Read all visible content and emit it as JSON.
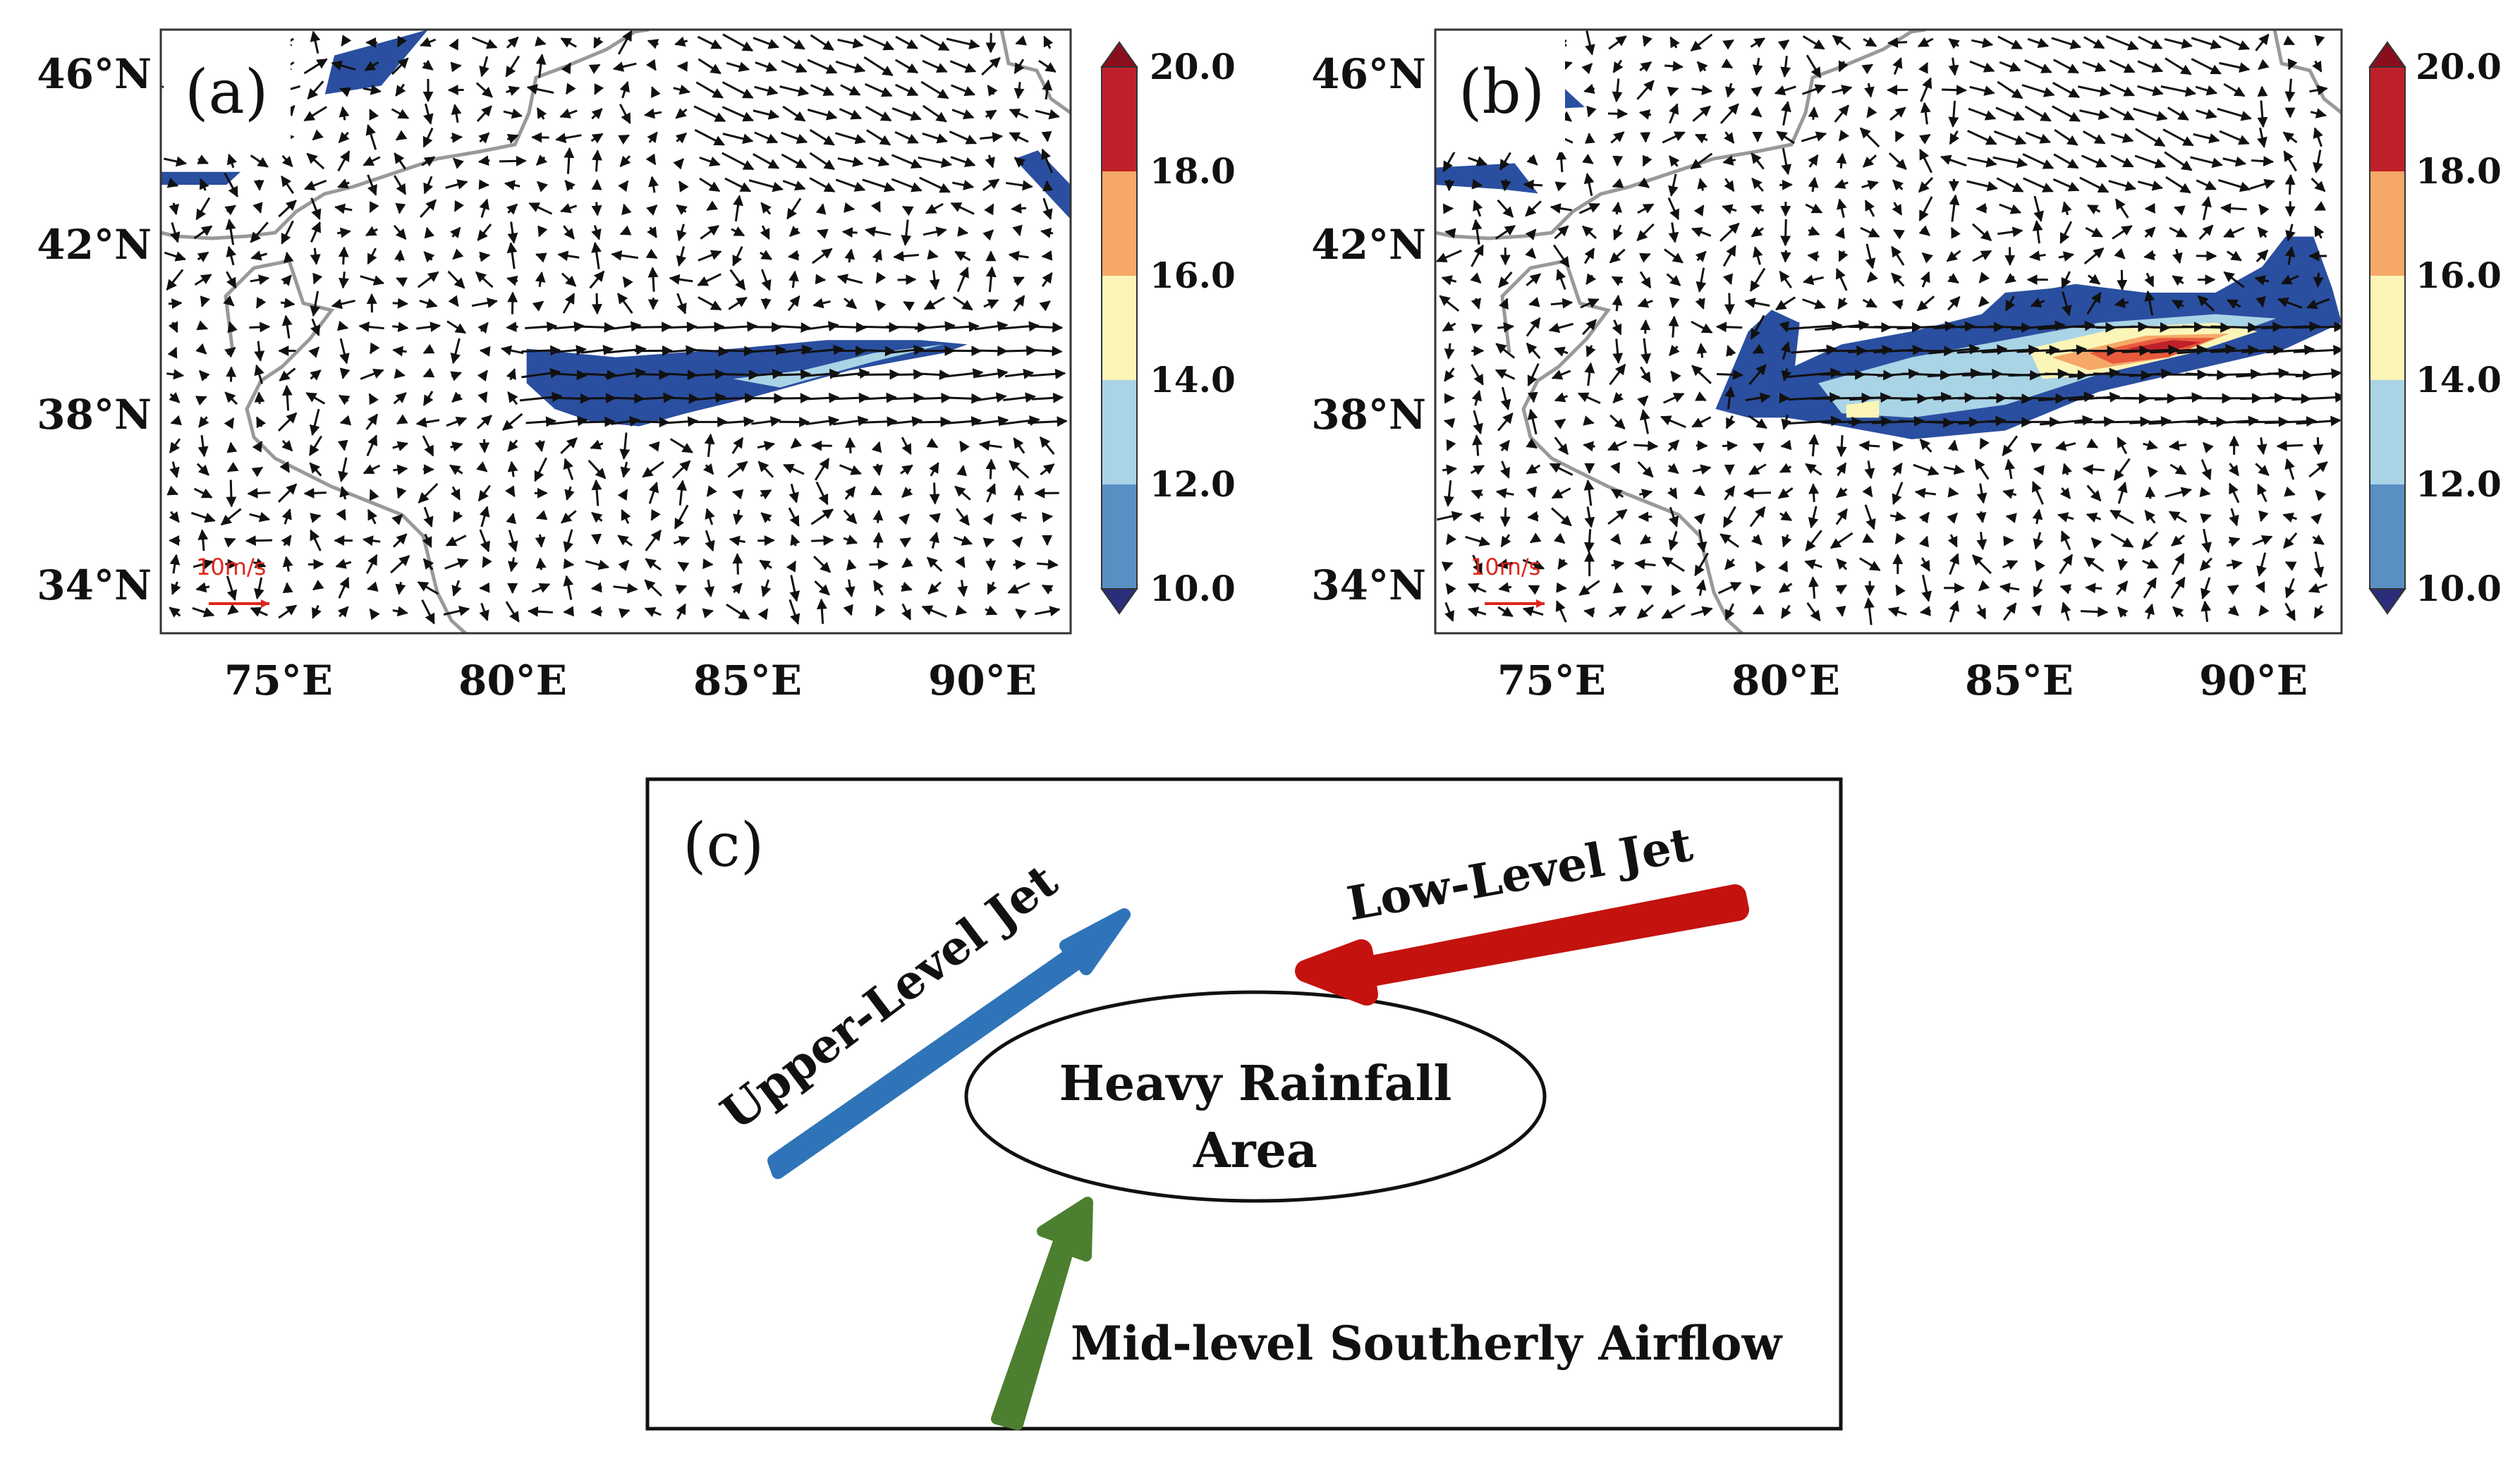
{
  "panels": [
    {
      "id": "a",
      "label": "(a)",
      "lat_ticks": [
        "46°N",
        "42°N",
        "38°N",
        "34°N"
      ],
      "lon_ticks": [
        "75°E",
        "80°E",
        "85°E",
        "90°E"
      ],
      "lat_range": [
        33,
        47
      ],
      "lon_range": [
        72.8,
        92.2
      ],
      "vector_scale_label": "10m/s",
      "colorbar": {
        "ticks": [
          "20.0",
          "18.0",
          "16.0",
          "14.0",
          "12.0",
          "10.0"
        ],
        "colors": [
          "#c0202a",
          "#e85a3c",
          "#f5a868",
          "#fbf5b8",
          "#a9d4e6",
          "#5a8fc4",
          "#2a4fa0"
        ]
      },
      "shaded_regions": [
        {
          "level": 10,
          "color": "#2a4fa0",
          "polygon_lonlat": [
            [
              80.6,
              39.6
            ],
            [
              82.5,
              39.4
            ],
            [
              85,
              39.6
            ],
            [
              87,
              39.8
            ],
            [
              89,
              39.8
            ],
            [
              90,
              39.7
            ],
            [
              89.5,
              39.5
            ],
            [
              87.5,
              39.1
            ],
            [
              85.5,
              38.5
            ],
            [
              84,
              38.1
            ],
            [
              83,
              37.8
            ],
            [
              82,
              37.9
            ],
            [
              81.2,
              38.2
            ],
            [
              80.6,
              38.8
            ]
          ]
        },
        {
          "level": 12,
          "color": "#a9d4e6",
          "polygon_lonlat": [
            [
              85,
              38.9
            ],
            [
              86.5,
              39.1
            ],
            [
              88,
              39.5
            ],
            [
              89.5,
              39.7
            ],
            [
              88,
              39.3
            ],
            [
              86,
              38.7
            ]
          ]
        },
        {
          "level": 10,
          "color": "#2a4fa0",
          "polygon_lonlat": [
            [
              76.5,
              46.4
            ],
            [
              78.5,
              47
            ],
            [
              77.5,
              45.7
            ],
            [
              76.3,
              45.5
            ]
          ]
        },
        {
          "level": 10,
          "color": "#2a4fa0",
          "polygon_lonlat": [
            [
              72.8,
              43.7
            ],
            [
              74.5,
              43.7
            ],
            [
              74.2,
              43.4
            ],
            [
              72.8,
              43.4
            ]
          ]
        },
        {
          "level": 10,
          "color": "#2a4fa0",
          "polygon_lonlat": [
            [
              91,
              44
            ],
            [
              92.2,
              42.6
            ],
            [
              92.2,
              43.4
            ],
            [
              91.5,
              44.2
            ]
          ]
        }
      ]
    },
    {
      "id": "b",
      "label": "(b)",
      "lat_ticks": [
        "46°N",
        "42°N",
        "38°N",
        "34°N"
      ],
      "lon_ticks": [
        "75°E",
        "80°E",
        "85°E",
        "90°E"
      ],
      "lat_range": [
        33,
        47
      ],
      "lon_range": [
        72.8,
        92.2
      ],
      "vector_scale_label": "10m/s",
      "colorbar": {
        "ticks": [
          "20.0",
          "18.0",
          "16.0",
          "14.0",
          "12.0",
          "10.0"
        ],
        "colors": [
          "#c0202a",
          "#e85a3c",
          "#f5a868",
          "#fbf5b8",
          "#a9d4e6",
          "#5a8fc4",
          "#2a4fa0"
        ]
      },
      "shaded_regions": [
        {
          "level": 10,
          "color": "#2a4fa0",
          "polygon_lonlat": [
            [
              78.8,
              38.2
            ],
            [
              79.5,
              40
            ],
            [
              80,
              40.5
            ],
            [
              80.6,
              40.2
            ],
            [
              80.5,
              39.2
            ],
            [
              81.5,
              39.7
            ],
            [
              83,
              40
            ],
            [
              84.5,
              40.4
            ],
            [
              85,
              40.9
            ],
            [
              86,
              41
            ],
            [
              86.5,
              41.1
            ],
            [
              88,
              40.9
            ],
            [
              89.5,
              40.9
            ],
            [
              90.5,
              41.5
            ],
            [
              91,
              42.2
            ],
            [
              91.6,
              42.2
            ],
            [
              92,
              41
            ],
            [
              92.2,
              40.2
            ],
            [
              91,
              39.6
            ],
            [
              89,
              39.1
            ],
            [
              87,
              38.6
            ],
            [
              85,
              37.7
            ],
            [
              83,
              37.5
            ],
            [
              81.5,
              37.8
            ],
            [
              80.3,
              38
            ],
            [
              79.5,
              38
            ]
          ]
        },
        {
          "level": 12,
          "color": "#a9d4e6",
          "polygon_lonlat": [
            [
              81,
              38.8
            ],
            [
              83,
              39.4
            ],
            [
              85,
              39.8
            ],
            [
              87,
              40.2
            ],
            [
              89.5,
              40.4
            ],
            [
              90.8,
              40.3
            ],
            [
              89,
              39.6
            ],
            [
              87,
              39.0
            ],
            [
              85,
              38.3
            ],
            [
              83,
              38
            ],
            [
              81.5,
              38.1
            ]
          ]
        },
        {
          "level": 14,
          "color": "#fbf5b8",
          "polygon_lonlat": [
            [
              85.5,
              39.6
            ],
            [
              87.5,
              40.1
            ],
            [
              89.5,
              40.2
            ],
            [
              90.4,
              40
            ],
            [
              89,
              39.5
            ],
            [
              87,
              39.0
            ],
            [
              85.8,
              38.9
            ]
          ]
        },
        {
          "level": 14,
          "color": "#fbf5b8",
          "polygon_lonlat": [
            [
              81.6,
              38.3
            ],
            [
              82.3,
              38.4
            ],
            [
              82.3,
              38.0
            ],
            [
              81.6,
              38.0
            ]
          ]
        },
        {
          "level": 16,
          "color": "#f5a868",
          "polygon_lonlat": [
            [
              86,
              39.4
            ],
            [
              88,
              39.9
            ],
            [
              89.8,
              39.95
            ],
            [
              88.5,
              39.4
            ],
            [
              86.8,
              39.1
            ]
          ]
        },
        {
          "level": 18,
          "color": "#e85a3c",
          "polygon_lonlat": [
            [
              86.8,
              39.5
            ],
            [
              88.3,
              39.85
            ],
            [
              89.5,
              39.85
            ],
            [
              88.5,
              39.4
            ],
            [
              87.3,
              39.25
            ]
          ]
        },
        {
          "level": 20,
          "color": "#c0202a",
          "polygon_lonlat": [
            [
              87.6,
              39.6
            ],
            [
              88.6,
              39.8
            ],
            [
              89.2,
              39.75
            ],
            [
              88.4,
              39.5
            ]
          ]
        },
        {
          "level": 10,
          "color": "#2a4fa0",
          "polygon_lonlat": [
            [
              73.3,
              45.2
            ],
            [
              75.5,
              45.7
            ],
            [
              76,
              45.2
            ],
            [
              74,
              45.1
            ]
          ]
        },
        {
          "level": 10,
          "color": "#2a4fa0",
          "polygon_lonlat": [
            [
              72.8,
              43.8
            ],
            [
              74.5,
              43.9
            ],
            [
              75,
              43.2
            ],
            [
              74.2,
              43.3
            ],
            [
              72.8,
              43.4
            ]
          ]
        }
      ]
    }
  ],
  "schematic": {
    "label": "(c)",
    "center_label_line1": "Heavy Rainfall",
    "center_label_line2": "Area",
    "upper_jet": {
      "label": "Upper-Level Jet",
      "color": "#2f74b8"
    },
    "low_jet": {
      "label": "Low-Level Jet",
      "color": "#c4120e"
    },
    "mid_flow": {
      "label": "Mid-level Southerly Airflow",
      "color": "#4c7f2f"
    }
  },
  "colors": {
    "border_line": "#999999",
    "vector": "#111111",
    "scale_vector": "#e0261c"
  }
}
